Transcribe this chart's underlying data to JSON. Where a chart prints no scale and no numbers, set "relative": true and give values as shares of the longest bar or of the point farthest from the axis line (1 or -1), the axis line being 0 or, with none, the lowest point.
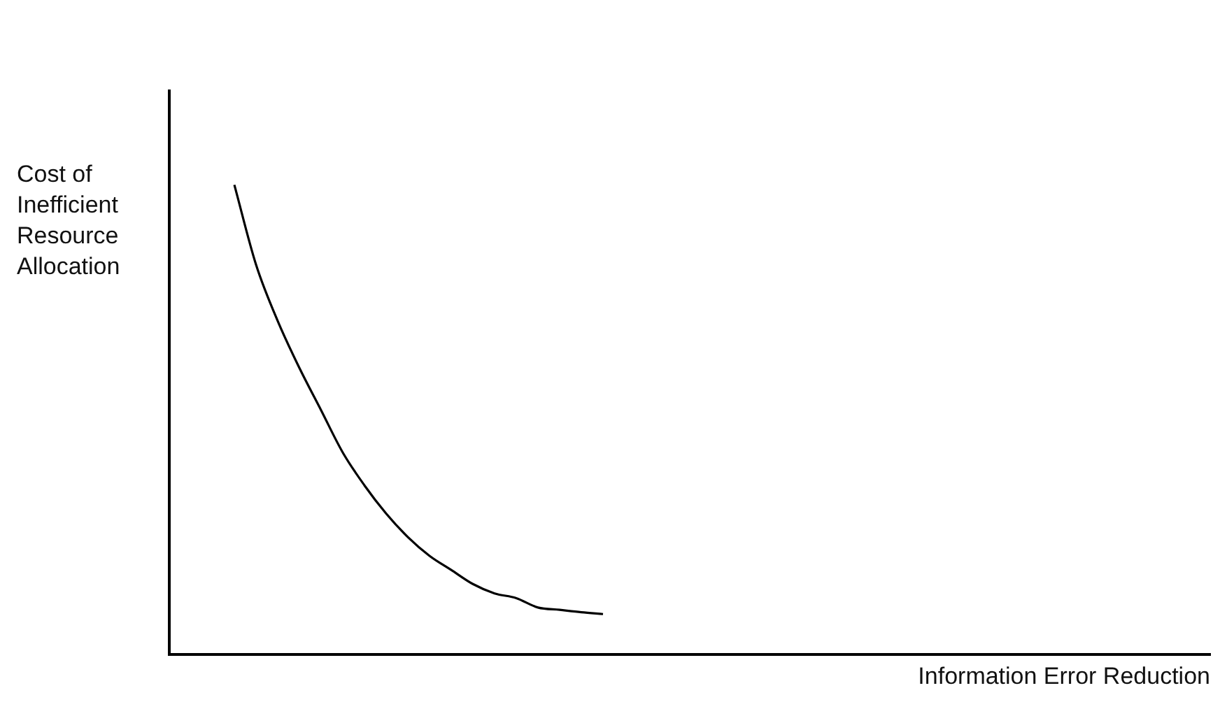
{
  "chart_data": {
    "type": "line",
    "relative": true,
    "xlabel": "Information Error Reduction",
    "ylabel": "Cost of Inefficient Resource Allocation",
    "marker": "none",
    "categories": [
      null,
      null,
      null,
      null,
      null,
      null,
      null,
      null,
      null,
      null,
      null,
      null,
      null,
      null,
      null,
      null,
      null,
      null,
      null,
      null,
      null,
      null,
      null,
      null,
      null,
      null,
      null,
      null,
      null,
      null,
      null,
      null,
      null,
      null,
      null,
      null,
      null,
      null,
      null,
      null,
      null,
      null,
      null,
      null,
      null,
      null,
      null,
      null,
      null
    ],
    "series": [
      {
        "color": "#000000",
        "values": [
          null,
          null,
          null,
          1,
          0.83,
          0.71,
          0.61,
          0.52,
          0.43,
          0.36,
          0.3,
          0.25,
          0.21,
          0.18,
          0.15,
          0.13,
          0.12,
          0.1,
          0.095,
          0.09,
          0.086,
          null,
          null,
          null,
          null,
          null,
          null,
          null,
          null,
          null,
          null,
          null,
          null,
          null,
          null,
          null,
          null,
          null,
          null,
          null,
          null,
          null,
          null,
          null,
          null,
          null,
          null,
          null,
          null
        ]
      }
    ]
  }
}
